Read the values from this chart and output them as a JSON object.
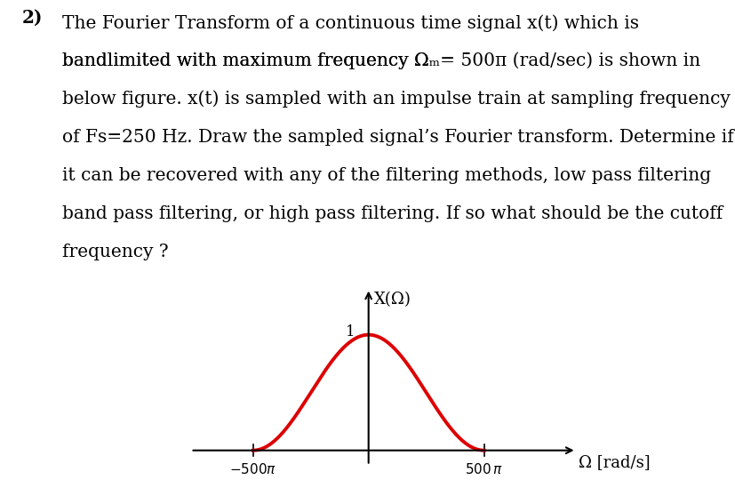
{
  "title_number": "2)",
  "lines": [
    "The Fourier Transform of a continuous time signal x(t) which is",
    "bandlimited with maximum frequency Ωm= 500π (rad/sec) is shown in",
    "below figure. x(t) is sampled with an impulse train at sampling frequency",
    "of Fs=250 Hz. Draw the sampled signal’s Fourier transform. Determine if",
    "it can be recovered with any of the filtering methods, low pass filtering",
    "band pass filtering, or high pass filtering. If so what should be the cutoff",
    "frequency ?"
  ],
  "xlabel": "Ω [rad/s]",
  "ylabel": "X(Ω)",
  "y_label_val": "1",
  "curve_color": "#dd0000",
  "background_color": "#ffffff",
  "omega_m": 500,
  "font_size_text": 14.5,
  "font_size_axis": 13,
  "curve_linewidth": 2.8
}
